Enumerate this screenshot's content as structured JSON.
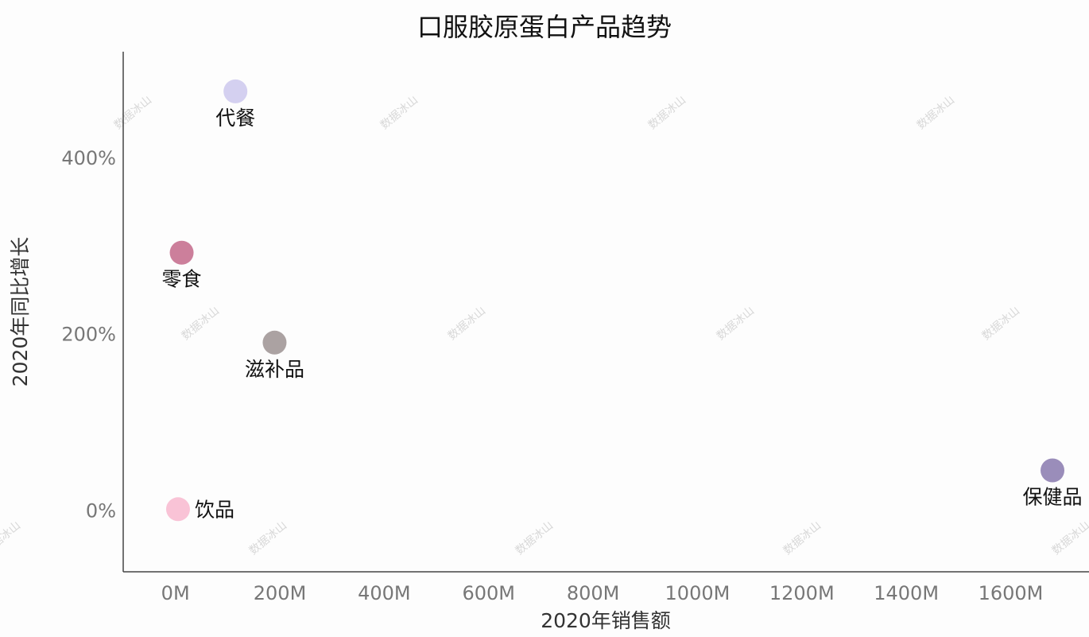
{
  "chart_data": {
    "type": "scatter",
    "title": "口服胶原蛋白产品趋势",
    "xlabel": "2020年销售额",
    "ylabel": "2020年同比增长",
    "xlim": [
      -100,
      1750
    ],
    "ylim": [
      -70,
      520
    ],
    "x_ticks": [
      {
        "value": 0,
        "label": "0M"
      },
      {
        "value": 200,
        "label": "200M"
      },
      {
        "value": 400,
        "label": "400M"
      },
      {
        "value": 600,
        "label": "600M"
      },
      {
        "value": 800,
        "label": "800M"
      },
      {
        "value": 1000,
        "label": "1000M"
      },
      {
        "value": 1200,
        "label": "1200M"
      },
      {
        "value": 1400,
        "label": "1400M"
      },
      {
        "value": 1600,
        "label": "1600M"
      }
    ],
    "y_ticks": [
      {
        "value": 0,
        "label": "0%"
      },
      {
        "value": 200,
        "label": "200%"
      },
      {
        "value": 400,
        "label": "400%"
      }
    ],
    "grid": false,
    "points": [
      {
        "name": "代餐",
        "x": 115,
        "y": 475,
        "color": "#d4d0f0",
        "label_pos": "below"
      },
      {
        "name": "零食",
        "x": 12,
        "y": 292,
        "color": "#cc7f9b",
        "label_pos": "below"
      },
      {
        "name": "滋补品",
        "x": 190,
        "y": 190,
        "color": "#aba2a2",
        "label_pos": "below"
      },
      {
        "name": "饮品",
        "x": 5,
        "y": 1,
        "color": "#f9c3d6",
        "label_pos": "right"
      },
      {
        "name": "保健品",
        "x": 1680,
        "y": 45,
        "color": "#9a8dba",
        "label_pos": "below"
      }
    ],
    "watermark": "数据冰山"
  }
}
